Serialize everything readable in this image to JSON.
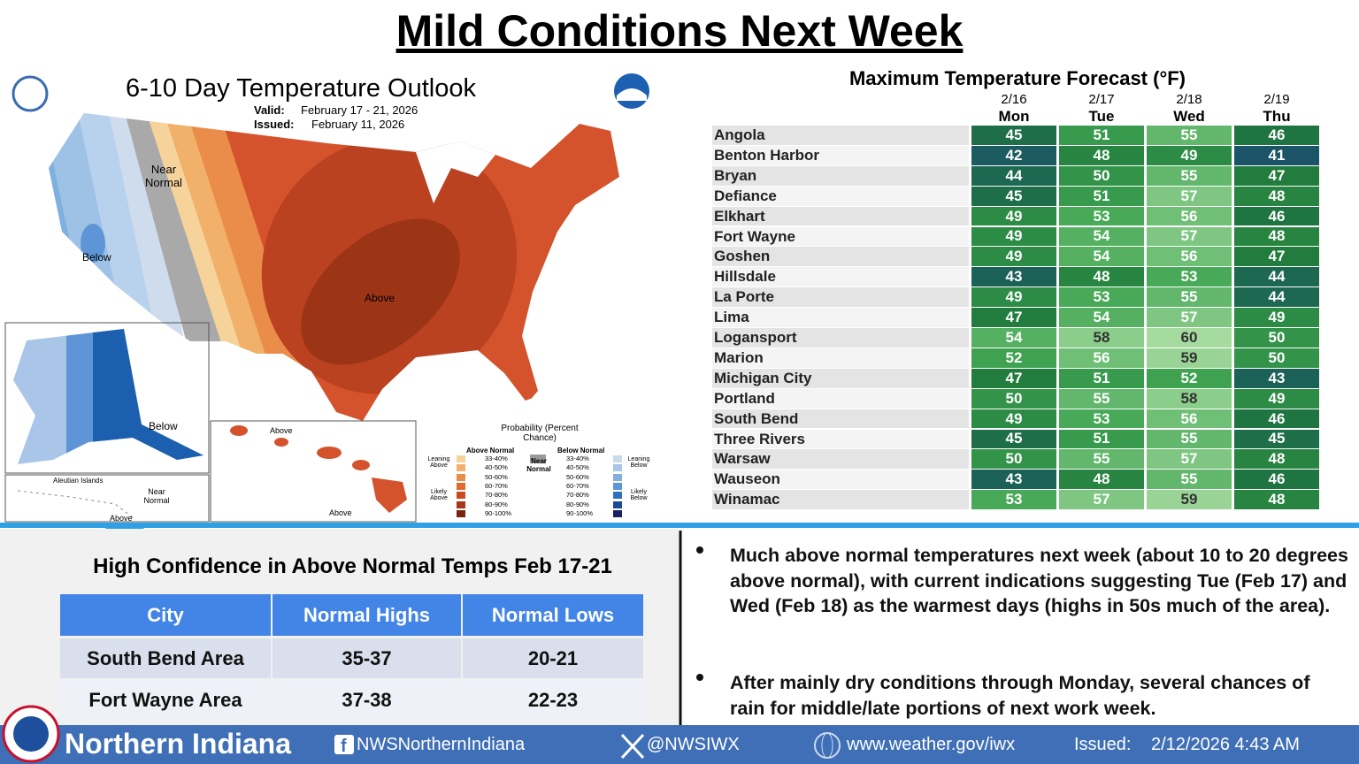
{
  "header": {
    "title": "Mild Conditions Next Week"
  },
  "outlook_map": {
    "title": "6-10 Day Temperature Outlook",
    "valid_label": "Valid:",
    "valid": "February 17 - 21, 2026",
    "issued_label": "Issued:",
    "issued": "February 11, 2026",
    "labels": [
      "Near Normal",
      "Below",
      "Above",
      "Below",
      "Aleutian Islands",
      "Near Normal",
      "Above",
      "Above",
      "Above"
    ],
    "legend": {
      "title": "Probability (Percent Chance)",
      "above_normal": "Above Normal",
      "below_normal": "Below Normal",
      "near_normal": "Near Normal",
      "leaning_above": "Leaning Above",
      "likely_above": "Likely Above",
      "leaning_below": "Leaning Below",
      "likely_below": "Likely Below",
      "ranges": [
        "33-40%",
        "40-50%",
        "50-60%",
        "60-70%",
        "70-80%",
        "80-90%",
        "90-100%"
      ],
      "above_colors": [
        "#f7d39c",
        "#f2b16b",
        "#ea8d4a",
        "#e06a33",
        "#cc4a22",
        "#a8361a",
        "#7a2410"
      ],
      "below_colors": [
        "#c9d9ee",
        "#a9c6e8",
        "#84aee0",
        "#5d95d6",
        "#2f6fc0",
        "#1b4a94",
        "#1a1f66"
      ],
      "near_color": "#9a9a9a"
    }
  },
  "forecast_table": {
    "title": "Maximum Temperature Forecast (°F)",
    "columns": [
      {
        "date": "2/16",
        "day": "Mon"
      },
      {
        "date": "2/17",
        "day": "Tue"
      },
      {
        "date": "2/18",
        "day": "Wed"
      },
      {
        "date": "2/19",
        "day": "Thu"
      }
    ],
    "rows": [
      {
        "city": "Angola",
        "values": [
          45,
          51,
          55,
          46
        ]
      },
      {
        "city": "Benton Harbor",
        "values": [
          42,
          48,
          49,
          41
        ]
      },
      {
        "city": "Bryan",
        "values": [
          44,
          50,
          55,
          47
        ]
      },
      {
        "city": "Defiance",
        "values": [
          45,
          51,
          57,
          48
        ]
      },
      {
        "city": "Elkhart",
        "values": [
          49,
          53,
          56,
          46
        ]
      },
      {
        "city": "Fort Wayne",
        "values": [
          49,
          54,
          57,
          48
        ]
      },
      {
        "city": "Goshen",
        "values": [
          49,
          54,
          56,
          47
        ]
      },
      {
        "city": "Hillsdale",
        "values": [
          43,
          48,
          53,
          44
        ]
      },
      {
        "city": "La Porte",
        "values": [
          49,
          53,
          55,
          44
        ]
      },
      {
        "city": "Lima",
        "values": [
          47,
          54,
          57,
          49
        ]
      },
      {
        "city": "Logansport",
        "values": [
          54,
          58,
          60,
          50
        ]
      },
      {
        "city": "Marion",
        "values": [
          52,
          56,
          59,
          50
        ]
      },
      {
        "city": "Michigan City",
        "values": [
          47,
          51,
          52,
          43
        ]
      },
      {
        "city": "Portland",
        "values": [
          50,
          55,
          58,
          49
        ]
      },
      {
        "city": "South Bend",
        "values": [
          49,
          53,
          56,
          46
        ]
      },
      {
        "city": "Three Rivers",
        "values": [
          45,
          51,
          55,
          45
        ]
      },
      {
        "city": "Warsaw",
        "values": [
          50,
          55,
          57,
          48
        ]
      },
      {
        "city": "Wauseon",
        "values": [
          43,
          48,
          55,
          46
        ]
      },
      {
        "city": "Winamac",
        "values": [
          53,
          57,
          59,
          48
        ]
      }
    ]
  },
  "confidence": {
    "title": "High Confidence in Above Normal Temps Feb 17-21",
    "headers": [
      "City",
      "Normal Highs",
      "Normal Lows"
    ],
    "rows": [
      [
        "South Bend Area",
        "35-37",
        "20-21"
      ],
      [
        "Fort Wayne Area",
        "37-38",
        "22-23"
      ]
    ]
  },
  "bullets": [
    "Much above normal temperatures next week (about 10 to 20 degrees above normal), with current indications suggesting Tue (Feb 17) and Wed (Feb 18) as the warmest days (highs in 50s much of the area).",
    "After mainly dry conditions through Monday, several chances of rain for middle/late portions of next work week."
  ],
  "footer": {
    "office": "Northern Indiana",
    "facebook": "NWSNorthernIndiana",
    "twitter": "@NWSIWX",
    "website": "www.weather.gov/iwx",
    "issued_label": "Issued:",
    "issued": "2/12/2026 4:43 AM"
  }
}
